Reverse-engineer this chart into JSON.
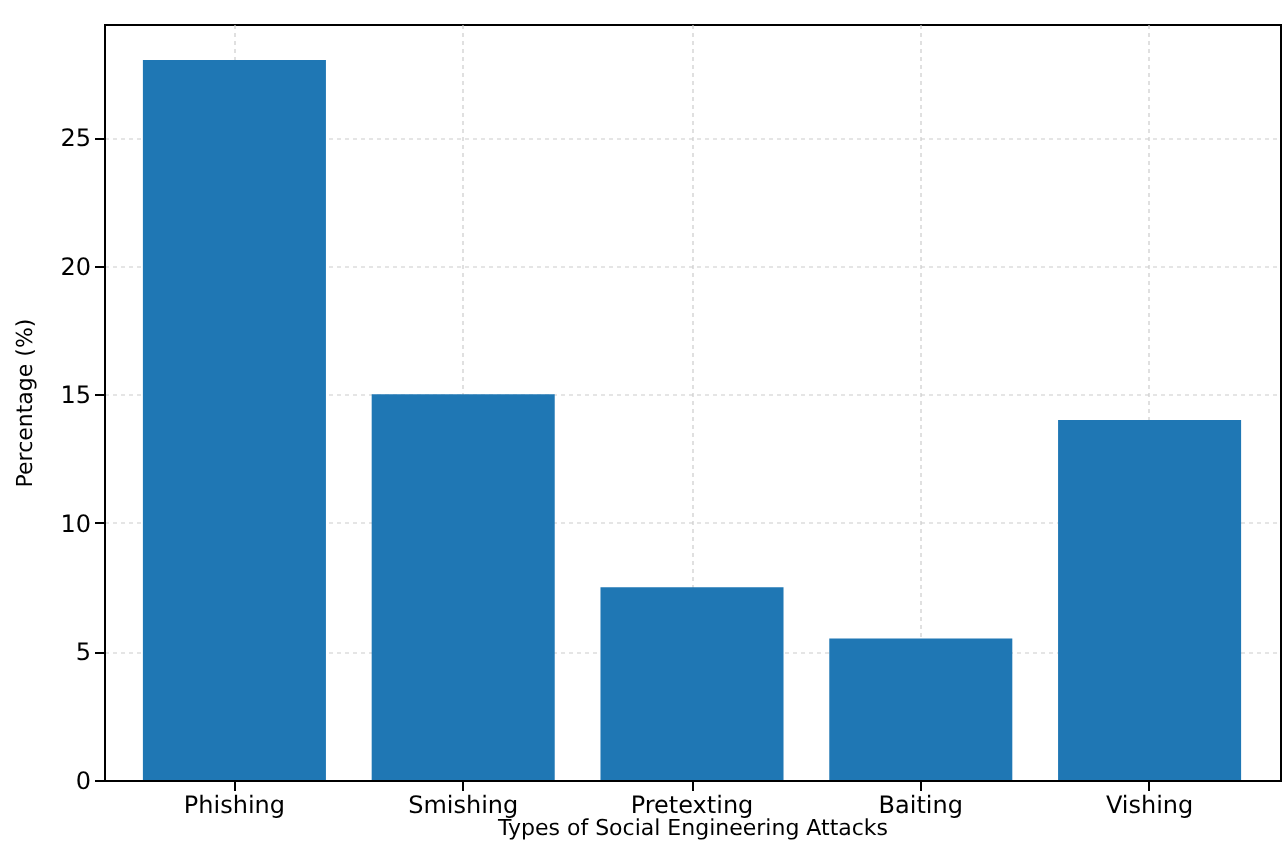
{
  "chart_data": {
    "type": "bar",
    "xlabel": "Types of Social Engineering Attacks",
    "ylabel": "Percentage (%)",
    "categories": [
      "Phishing",
      "Smishing",
      "Pretexting",
      "Baiting",
      "Vishing"
    ],
    "values": [
      28,
      15,
      7.5,
      5.5,
      14
    ],
    "color": "#1f77b4",
    "ylim": [
      0,
      29.4
    ],
    "yticks": [
      0,
      5,
      10,
      15,
      20,
      25
    ],
    "grid": true
  }
}
